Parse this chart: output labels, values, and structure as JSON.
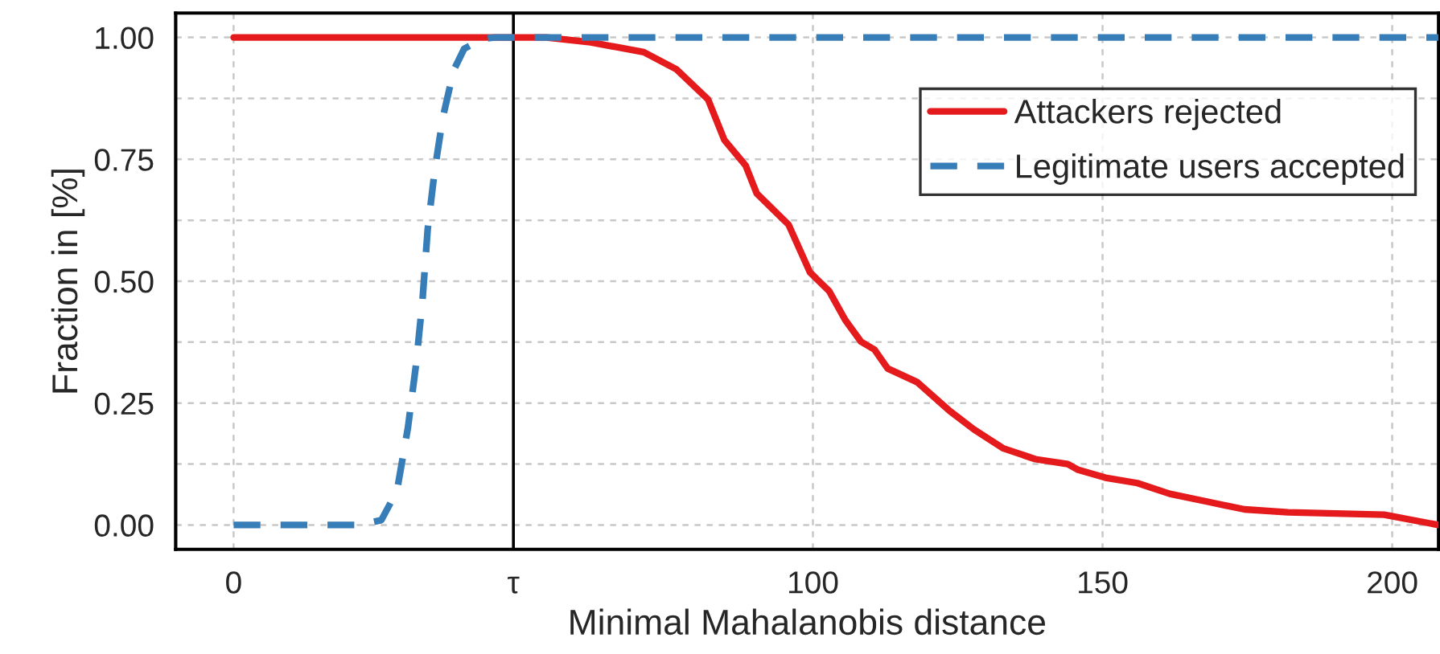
{
  "chart_data": {
    "type": "line",
    "xlabel": "Minimal Mahalanobis distance",
    "ylabel": "Fraction in [%]",
    "series": [
      {
        "name": "Attackers rejected",
        "color": "#e41a1c",
        "line_style": "solid",
        "x": [
          0,
          54,
          61.6,
          70.8,
          76.4,
          81.9,
          84.7,
          88.4,
          90.3,
          95.8,
          99.5,
          102.8,
          105.6,
          108.3,
          110.6,
          112.9,
          118,
          123.6,
          127.8,
          132.9,
          138.4,
          144,
          145.8,
          150.5,
          156,
          161.6,
          168,
          174.5,
          182,
          198.6,
          208
        ],
        "values": [
          1.0,
          1.0,
          0.99,
          0.97,
          0.935,
          0.873,
          0.79,
          0.737,
          0.68,
          0.616,
          0.518,
          0.48,
          0.42,
          0.376,
          0.36,
          0.321,
          0.293,
          0.234,
          0.196,
          0.157,
          0.135,
          0.125,
          0.113,
          0.097,
          0.086,
          0.064,
          0.048,
          0.032,
          0.026,
          0.021,
          0.0
        ]
      },
      {
        "name": "Legitimate users accepted",
        "color": "#377eb8",
        "line_style": "dashed",
        "x": [
          0,
          21.7,
          25.5,
          28.2,
          30.1,
          31.5,
          32.6,
          33.5,
          34.7,
          36.1,
          38.0,
          39.8,
          43,
          45,
          208
        ],
        "values": [
          0.0,
          0.0,
          0.01,
          0.07,
          0.2,
          0.33,
          0.46,
          0.606,
          0.726,
          0.835,
          0.933,
          0.977,
          0.997,
          1.0,
          1.0
        ]
      }
    ],
    "xlim": [
      -10,
      208
    ],
    "xticks": [
      0,
      {
        "value": 48.3,
        "label": "τ"
      },
      100,
      150,
      200
    ],
    "ylim": [
      -0.05,
      1.05
    ],
    "yticks": [
      {
        "value": 0,
        "label": "0.00"
      },
      {
        "value": 0.125,
        "label": null
      },
      {
        "value": 0.25,
        "label": "0.25"
      },
      {
        "value": 0.375,
        "label": null
      },
      {
        "value": 0.5,
        "label": "0.50"
      },
      {
        "value": 0.625,
        "label": null
      },
      {
        "value": 0.75,
        "label": "0.75"
      },
      {
        "value": 0.875,
        "label": null
      },
      {
        "value": 1,
        "label": "1.00"
      }
    ],
    "ref_lines": [
      {
        "axis": "x",
        "value": 48.3,
        "color": "#000000",
        "line_style": "solid"
      }
    ],
    "grid": true,
    "legend": "top right"
  }
}
